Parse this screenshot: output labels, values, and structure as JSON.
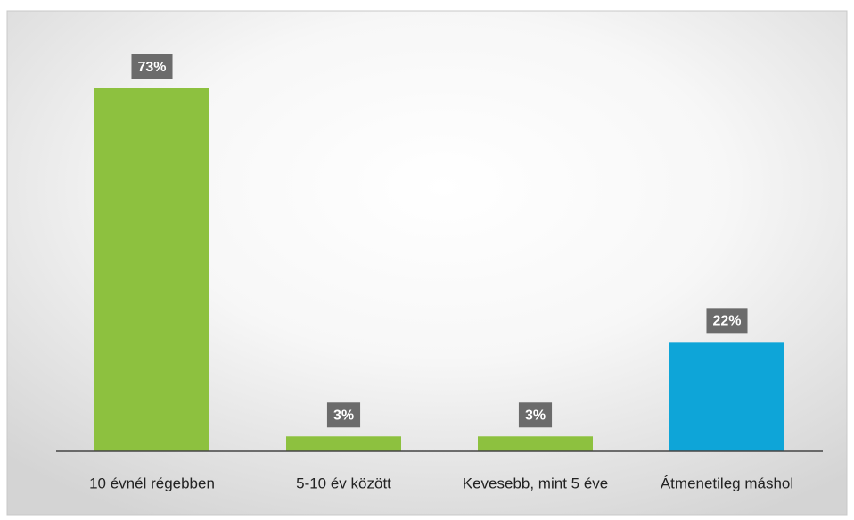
{
  "chart_data": {
    "type": "bar",
    "categories": [
      "10 évnél régebben",
      "5-10 év között",
      "Kevesebb, mint 5 éve",
      "Átmenetileg máshol"
    ],
    "values": [
      73,
      3,
      3,
      22
    ],
    "value_labels": [
      "73%",
      "3%",
      "3%",
      "22%"
    ],
    "colors": [
      "#8dc13f",
      "#8dc13f",
      "#8dc13f",
      "#0ea5d8"
    ]
  }
}
